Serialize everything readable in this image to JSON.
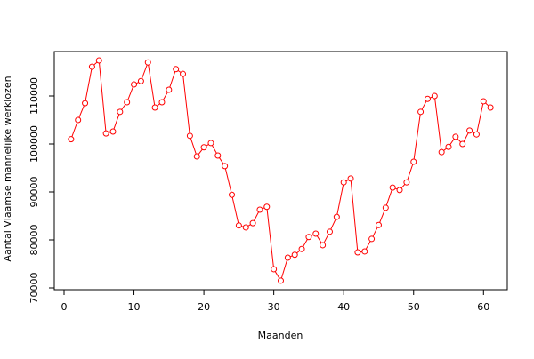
{
  "chart_data": {
    "type": "line",
    "x_label": "Maanden",
    "y_label": "Aantal Vlaamse mannelijke werklozen",
    "x": [
      1,
      2,
      3,
      4,
      5,
      6,
      7,
      8,
      9,
      10,
      11,
      12,
      13,
      14,
      15,
      16,
      17,
      18,
      19,
      20,
      21,
      22,
      23,
      24,
      25,
      26,
      27,
      28,
      29,
      30,
      31,
      32,
      33,
      34,
      35,
      36,
      37,
      38,
      39,
      40,
      41,
      42,
      43,
      44,
      45,
      46,
      47,
      48,
      49,
      50,
      51,
      52,
      53,
      54,
      55,
      56,
      57,
      58,
      59,
      60,
      61
    ],
    "series": [
      {
        "color": "#ff0000",
        "values": [
          101000,
          105000,
          108500,
          116100,
          117400,
          102200,
          102600,
          106700,
          108700,
          112400,
          113100,
          117000,
          107600,
          108700,
          111300,
          115600,
          114600,
          101700,
          97400,
          99300,
          100200,
          97600,
          95400,
          89400,
          83000,
          82600,
          83500,
          86300,
          86900,
          73900,
          71500,
          76300,
          76900,
          78100,
          80600,
          81300,
          78900,
          81700,
          84800,
          92000,
          92800,
          77400,
          77600,
          80200,
          83100,
          86700,
          90900,
          90400,
          92000,
          96300,
          106700,
          109400,
          110000,
          98300,
          99400,
          101500,
          100000,
          102800,
          102000,
          108900,
          107600
        ]
      }
    ],
    "xlim": [
      -1.4,
      63.4
    ],
    "ylim": [
      69630,
      119260
    ],
    "xticks": [
      0,
      10,
      20,
      30,
      40,
      50,
      60
    ],
    "yticks": [
      70000,
      80000,
      90000,
      100000,
      110000
    ]
  }
}
